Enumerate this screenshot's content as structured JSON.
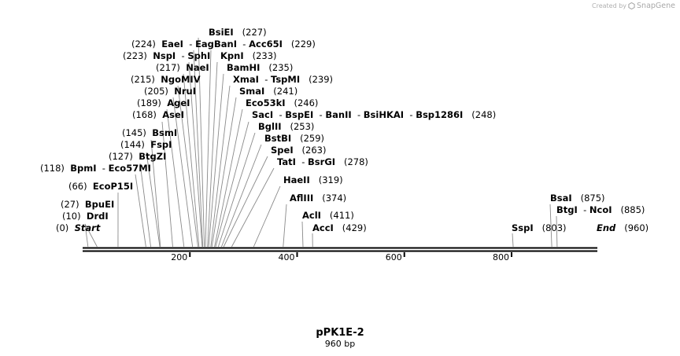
{
  "credit": {
    "created_by": "Created by",
    "brand": "SnapGene"
  },
  "plasmid": {
    "name": "pPK1E-2",
    "length_label": "960 bp",
    "length_bp": 960
  },
  "axis": {
    "ticks": [
      200,
      400,
      600,
      800
    ]
  },
  "features": [
    {
      "id": "start",
      "names": [
        "Start"
      ],
      "pos": 0,
      "pos_label": "(0)",
      "italic": true
    },
    {
      "id": "drdi",
      "names": [
        "DrdI"
      ],
      "pos": 10,
      "pos_label": "(10)"
    },
    {
      "id": "bpuei",
      "names": [
        "BpuEI"
      ],
      "pos": 27,
      "pos_label": "(27)"
    },
    {
      "id": "ecop15i",
      "names": [
        "EcoP15I"
      ],
      "pos": 66,
      "pos_label": "(66)"
    },
    {
      "id": "bpmi",
      "names": [
        "BpmI",
        "Eco57MI"
      ],
      "pos": 118,
      "pos_label": "(118)"
    },
    {
      "id": "btgzi",
      "names": [
        "BtgZI"
      ],
      "pos": 127,
      "pos_label": "(127)"
    },
    {
      "id": "fspi",
      "names": [
        "FspI"
      ],
      "pos": 144,
      "pos_label": "(144)"
    },
    {
      "id": "bsmi",
      "names": [
        "BsmI"
      ],
      "pos": 145,
      "pos_label": "(145)"
    },
    {
      "id": "asei",
      "names": [
        "AseI"
      ],
      "pos": 168,
      "pos_label": "(168)"
    },
    {
      "id": "agei",
      "names": [
        "AgeI"
      ],
      "pos": 189,
      "pos_label": "(189)"
    },
    {
      "id": "nrui",
      "names": [
        "NruI"
      ],
      "pos": 205,
      "pos_label": "(205)"
    },
    {
      "id": "ngomiv",
      "names": [
        "NgoMIV"
      ],
      "pos": 215,
      "pos_label": "(215)"
    },
    {
      "id": "naei",
      "names": [
        "NaeI"
      ],
      "pos": 217,
      "pos_label": "(217)"
    },
    {
      "id": "nspi",
      "names": [
        "NspI",
        "SphI"
      ],
      "pos": 223,
      "pos_label": "(223)"
    },
    {
      "id": "eaei",
      "names": [
        "EaeI",
        "EagI"
      ],
      "pos": 224,
      "pos_label": "(224)"
    },
    {
      "id": "bsiei",
      "names": [
        "BsiEI"
      ],
      "pos": 227,
      "pos_label": "(227)"
    },
    {
      "id": "bani",
      "names": [
        "BanI",
        "Acc65I"
      ],
      "pos": 229,
      "pos_label": "(229)"
    },
    {
      "id": "kpni",
      "names": [
        "KpnI"
      ],
      "pos": 233,
      "pos_label": "(233)"
    },
    {
      "id": "bamhi",
      "names": [
        "BamHI"
      ],
      "pos": 235,
      "pos_label": "(235)"
    },
    {
      "id": "xmai",
      "names": [
        "XmaI",
        "TspMI"
      ],
      "pos": 239,
      "pos_label": "(239)"
    },
    {
      "id": "smai",
      "names": [
        "SmaI"
      ],
      "pos": 241,
      "pos_label": "(241)"
    },
    {
      "id": "eco53ki",
      "names": [
        "Eco53kI"
      ],
      "pos": 246,
      "pos_label": "(246)"
    },
    {
      "id": "saci",
      "names": [
        "SacI",
        "BspEI",
        "BanII",
        "BsiHKAI",
        "Bsp1286I"
      ],
      "pos": 248,
      "pos_label": "(248)"
    },
    {
      "id": "bglii",
      "names": [
        "BglII"
      ],
      "pos": 253,
      "pos_label": "(253)"
    },
    {
      "id": "bstbi",
      "names": [
        "BstBI"
      ],
      "pos": 259,
      "pos_label": "(259)"
    },
    {
      "id": "spei",
      "names": [
        "SpeI"
      ],
      "pos": 263,
      "pos_label": "(263)"
    },
    {
      "id": "tati",
      "names": [
        "TatI",
        "BsrGI"
      ],
      "pos": 278,
      "pos_label": "(278)"
    },
    {
      "id": "haeii",
      "names": [
        "HaeII"
      ],
      "pos": 319,
      "pos_label": "(319)"
    },
    {
      "id": "aflii",
      "names": [
        "AflIII"
      ],
      "pos": 374,
      "pos_label": "(374)"
    },
    {
      "id": "acli",
      "names": [
        "AclI"
      ],
      "pos": 411,
      "pos_label": "(411)"
    },
    {
      "id": "acci",
      "names": [
        "AccI"
      ],
      "pos": 429,
      "pos_label": "(429)"
    },
    {
      "id": "sspi",
      "names": [
        "SspI"
      ],
      "pos": 803,
      "pos_label": "(803)"
    },
    {
      "id": "bsai",
      "names": [
        "BsaI"
      ],
      "pos": 875,
      "pos_label": "(875)"
    },
    {
      "id": "btgi",
      "names": [
        "BtgI",
        "NcoI"
      ],
      "pos": 885,
      "pos_label": "(885)"
    },
    {
      "id": "end",
      "names": [
        "End"
      ],
      "pos": 960,
      "pos_label": "(960)",
      "italic": true
    }
  ]
}
